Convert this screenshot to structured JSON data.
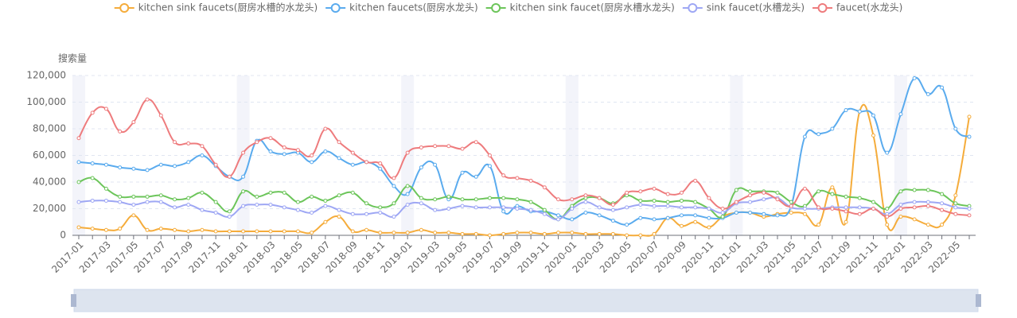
{
  "chart_data": {
    "type": "line",
    "y_label": "搜索量",
    "categories": [
      "2017-01",
      null,
      "2017-03",
      null,
      "2017-05",
      null,
      "2017-07",
      null,
      "2017-09",
      null,
      "2017-11",
      null,
      "2018-01",
      null,
      "2018-03",
      null,
      "2018-05",
      null,
      "2018-07",
      null,
      "2018-09",
      null,
      "2018-11",
      null,
      "2019-01",
      null,
      "2019-03",
      null,
      "2019-05",
      null,
      "2019-07",
      null,
      "2019-09",
      null,
      "2019-11",
      null,
      "2020-01",
      null,
      "2020-03",
      null,
      "2020-05",
      null,
      "2020-07",
      null,
      "2020-09",
      null,
      "2020-11",
      null,
      "2021-01",
      null,
      "2021-03",
      null,
      "2021-05",
      null,
      "2021-07",
      null,
      "2021-09",
      null,
      "2021-11",
      null,
      "2022-01",
      null,
      "2022-03",
      null,
      "2022-05",
      null
    ],
    "ylim": [
      0,
      120000
    ],
    "yticks": [
      0,
      {
        "value": 20000,
        "label": "20,000"
      },
      {
        "value": 40000,
        "label": "40,000"
      },
      {
        "value": 60000,
        "label": "60,000"
      },
      {
        "value": 80000,
        "label": "80,000"
      },
      {
        "value": 100000,
        "label": "100,000"
      },
      {
        "value": 120000,
        "label": "120,000"
      }
    ],
    "grid": true,
    "legend": "top",
    "series": [
      {
        "name": "kitchen sink faucets(厨房水槽的水龙头)",
        "color": "#f5ac3b",
        "values": [
          6000,
          5000,
          4000,
          5000,
          15000,
          4000,
          5000,
          4000,
          3000,
          4000,
          3000,
          3000,
          3000,
          3000,
          3000,
          3000,
          3000,
          2000,
          10000,
          14000,
          3000,
          4000,
          2000,
          2000,
          2000,
          4000,
          2000,
          2000,
          1000,
          1000,
          0,
          1000,
          2000,
          2000,
          1000,
          2000,
          2000,
          1000,
          1000,
          1000,
          0,
          0,
          1000,
          13000,
          7000,
          10000,
          6000,
          14000,
          17000,
          17000,
          14000,
          16000,
          17000,
          16000,
          8000,
          36000,
          10000,
          93000,
          75000,
          8000,
          14000,
          12000,
          8000,
          8000,
          30000,
          89000
        ]
      },
      {
        "name": "kitchen faucets(厨房水龙头)",
        "color": "#5aabee",
        "values": [
          55000,
          54000,
          53000,
          51000,
          50000,
          49000,
          53000,
          52000,
          55000,
          60000,
          52000,
          44000,
          44000,
          71000,
          63000,
          61000,
          62000,
          55000,
          63000,
          58000,
          53000,
          55000,
          50000,
          37000,
          31000,
          51000,
          53000,
          27000,
          47000,
          44000,
          52000,
          18000,
          22000,
          18000,
          18000,
          15000,
          12000,
          17000,
          15000,
          11000,
          8000,
          13000,
          12000,
          13000,
          15000,
          15000,
          13000,
          13000,
          17000,
          17000,
          16000,
          15000,
          22000,
          74000,
          76000,
          80000,
          94000,
          93000,
          90000,
          62000,
          91000,
          118000,
          106000,
          111000,
          80000,
          74000
        ]
      },
      {
        "name": "kitchen sink faucet(厨房水槽水龙头)",
        "color": "#6cc55a",
        "values": [
          40000,
          43000,
          35000,
          29000,
          29000,
          29000,
          30000,
          27000,
          28000,
          32000,
          25000,
          18000,
          33000,
          29000,
          32000,
          32000,
          25000,
          29000,
          26000,
          30000,
          32000,
          24000,
          21000,
          24000,
          37000,
          28000,
          27000,
          29000,
          27000,
          27000,
          28000,
          28000,
          27000,
          25000,
          19000,
          12000,
          22000,
          28000,
          28000,
          24000,
          30000,
          26000,
          26000,
          25000,
          26000,
          25000,
          20000,
          14000,
          34000,
          33000,
          33000,
          32000,
          25000,
          22000,
          33000,
          31000,
          29000,
          28000,
          25000,
          20000,
          33000,
          34000,
          34000,
          31000,
          24000,
          22000
        ]
      },
      {
        "name": "sink faucet(水槽龙头)",
        "color": "#9ea7f4",
        "values": [
          25000,
          26000,
          26000,
          25000,
          23000,
          25000,
          25000,
          21000,
          23000,
          19000,
          17000,
          14000,
          22000,
          23000,
          23000,
          21000,
          19000,
          17000,
          22000,
          19000,
          16000,
          16000,
          17000,
          14000,
          23000,
          24000,
          19000,
          20000,
          22000,
          21000,
          21000,
          21000,
          20000,
          19000,
          16000,
          12000,
          20000,
          25000,
          21000,
          19000,
          21000,
          23000,
          22000,
          22000,
          21000,
          21000,
          20000,
          17000,
          24000,
          25000,
          27000,
          28000,
          21000,
          20000,
          20000,
          21000,
          21000,
          21000,
          20000,
          16000,
          23000,
          25000,
          25000,
          24000,
          21000,
          20000
        ]
      },
      {
        "name": "faucet(水龙头)",
        "color": "#ee7b7d",
        "values": [
          73000,
          92000,
          95000,
          78000,
          85000,
          102000,
          90000,
          70000,
          69000,
          67000,
          53000,
          44000,
          62000,
          70000,
          73000,
          66000,
          64000,
          60000,
          80000,
          70000,
          62000,
          55000,
          54000,
          43000,
          62000,
          66000,
          67000,
          67000,
          65000,
          70000,
          60000,
          45000,
          43000,
          41000,
          36000,
          27000,
          27000,
          30000,
          28000,
          23000,
          32000,
          33000,
          35000,
          31000,
          32000,
          41000,
          28000,
          20000,
          25000,
          30000,
          32000,
          27000,
          22000,
          35000,
          21000,
          20000,
          18000,
          16000,
          20000,
          14000,
          20000,
          21000,
          22000,
          19000,
          16000,
          15000
        ]
      }
    ]
  }
}
